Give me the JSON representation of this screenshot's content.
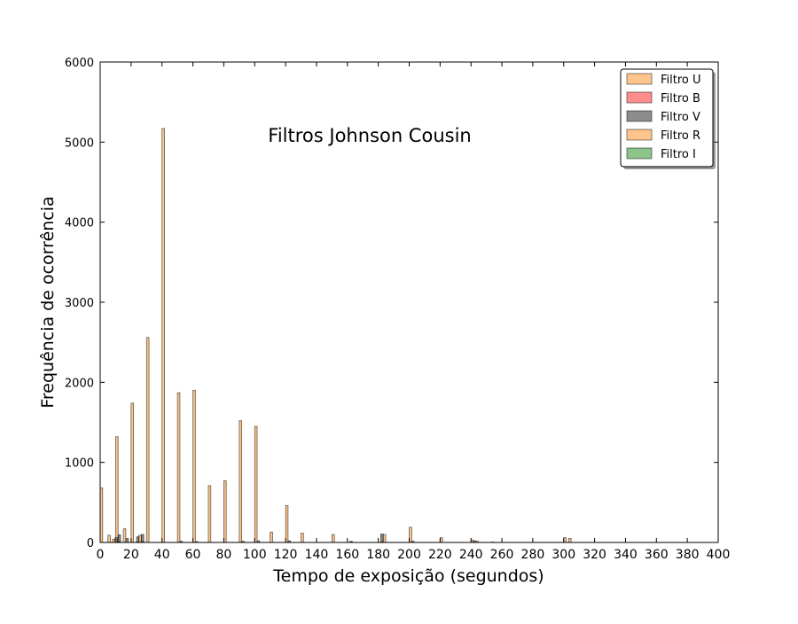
{
  "chart_data": {
    "type": "bar",
    "title": "Filtros Johnson Cousin",
    "xlabel": "Tempo de exposição (segundos)",
    "ylabel": "Frequência de ocorrência",
    "xlim": [
      0,
      400
    ],
    "ylim": [
      0,
      6000
    ],
    "xticks": [
      0,
      20,
      40,
      60,
      80,
      100,
      120,
      140,
      160,
      180,
      200,
      220,
      240,
      260,
      280,
      300,
      320,
      340,
      360,
      380,
      400
    ],
    "yticks": [
      0,
      1000,
      2000,
      3000,
      4000,
      5000,
      6000
    ],
    "grid": false,
    "legend_position": "top-right",
    "bin_width": 1.6,
    "series": [
      {
        "name": "Filtro U",
        "color": "#ff9f3f",
        "offset": 0,
        "points": [
          {
            "x": 0,
            "y": 680
          },
          {
            "x": 5,
            "y": 90
          },
          {
            "x": 8,
            "y": 40
          },
          {
            "x": 10,
            "y": 1320
          },
          {
            "x": 15,
            "y": 170
          },
          {
            "x": 20,
            "y": 1740
          },
          {
            "x": 25,
            "y": 90
          },
          {
            "x": 30,
            "y": 2560
          },
          {
            "x": 40,
            "y": 5170
          },
          {
            "x": 50,
            "y": 1870
          },
          {
            "x": 60,
            "y": 1900
          },
          {
            "x": 70,
            "y": 710
          },
          {
            "x": 80,
            "y": 770
          },
          {
            "x": 90,
            "y": 1520
          },
          {
            "x": 100,
            "y": 1450
          },
          {
            "x": 110,
            "y": 130
          },
          {
            "x": 120,
            "y": 460
          },
          {
            "x": 130,
            "y": 115
          },
          {
            "x": 150,
            "y": 100
          },
          {
            "x": 200,
            "y": 190
          },
          {
            "x": 220,
            "y": 60
          },
          {
            "x": 240,
            "y": 30
          },
          {
            "x": 300,
            "y": 60
          }
        ]
      },
      {
        "name": "Filtro B",
        "color": "#ff3f3f",
        "offset": 1.6,
        "points": [
          {
            "x": 10,
            "y": 10
          },
          {
            "x": 25,
            "y": 10
          },
          {
            "x": 180,
            "y": 8
          }
        ]
      },
      {
        "name": "Filtro V",
        "color": "#404040",
        "offset": 1.6,
        "points": [
          {
            "x": 8,
            "y": 60
          },
          {
            "x": 10,
            "y": 95
          },
          {
            "x": 15,
            "y": 50
          },
          {
            "x": 22,
            "y": 70
          },
          {
            "x": 25,
            "y": 100
          },
          {
            "x": 50,
            "y": 15
          },
          {
            "x": 60,
            "y": 10
          },
          {
            "x": 90,
            "y": 15
          },
          {
            "x": 100,
            "y": 20
          },
          {
            "x": 120,
            "y": 20
          },
          {
            "x": 160,
            "y": 15
          },
          {
            "x": 180,
            "y": 105
          },
          {
            "x": 200,
            "y": 15
          },
          {
            "x": 240,
            "y": 20
          }
        ]
      },
      {
        "name": "Filtro R",
        "color": "#ff9f3f",
        "offset": 3.2,
        "points": [
          {
            "x": 180,
            "y": 100
          },
          {
            "x": 300,
            "y": 50
          },
          {
            "x": 240,
            "y": 15
          }
        ]
      },
      {
        "name": "Filtro I",
        "color": "#3f9f3f",
        "offset": 3.2,
        "points": [
          {
            "x": 20,
            "y": 5
          },
          {
            "x": 250,
            "y": 5
          }
        ]
      }
    ]
  }
}
